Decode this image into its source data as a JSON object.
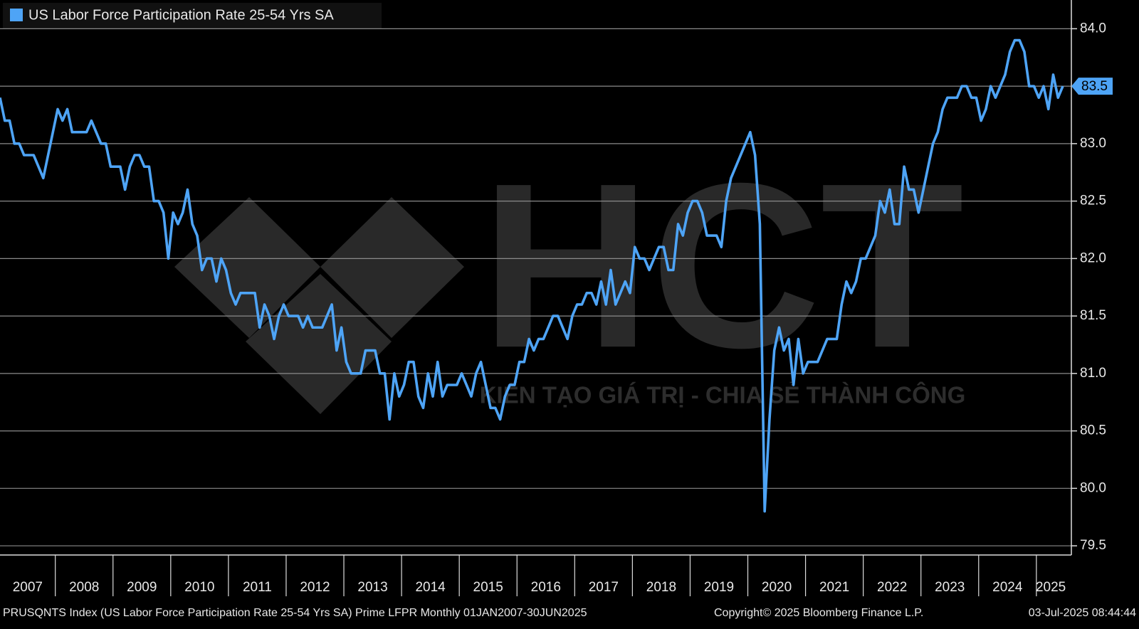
{
  "chart_data": {
    "type": "line",
    "title": "US Labor Force Participation Rate 25-54 Yrs SA",
    "footer": "PRUSQNTS Index (US Labor Force Participation Rate 25-54 Yrs SA) Prime LFPR  Monthly 01JAN2007-30JUN2025",
    "copyright": "Copyright© 2025 Bloomberg Finance L.P.",
    "timestamp": "03-Jul-2025 08:44:44",
    "watermark": "HCT",
    "watermark_slogan": "KIẾN TẠO GIÁ TRỊ - CHIA SẺ THÀNH CÔNG",
    "categories": [
      "2007",
      null,
      null,
      null,
      null,
      null,
      null,
      null,
      null,
      null,
      null,
      null,
      "2008",
      null,
      null,
      null,
      null,
      null,
      null,
      null,
      null,
      null,
      null,
      null,
      "2009",
      null,
      null,
      null,
      null,
      null,
      null,
      null,
      null,
      null,
      null,
      null,
      "2010",
      null,
      null,
      null,
      null,
      null,
      null,
      null,
      null,
      null,
      null,
      null,
      "2011",
      null,
      null,
      null,
      null,
      null,
      null,
      null,
      null,
      null,
      null,
      null,
      "2012",
      null,
      null,
      null,
      null,
      null,
      null,
      null,
      null,
      null,
      null,
      null,
      "2013",
      null,
      null,
      null,
      null,
      null,
      null,
      null,
      null,
      null,
      null,
      null,
      "2014",
      null,
      null,
      null,
      null,
      null,
      null,
      null,
      null,
      null,
      null,
      null,
      "2015",
      null,
      null,
      null,
      null,
      null,
      null,
      null,
      null,
      null,
      null,
      null,
      "2016",
      null,
      null,
      null,
      null,
      null,
      null,
      null,
      null,
      null,
      null,
      null,
      "2017",
      null,
      null,
      null,
      null,
      null,
      null,
      null,
      null,
      null,
      null,
      null,
      "2018",
      null,
      null,
      null,
      null,
      null,
      null,
      null,
      null,
      null,
      null,
      null,
      "2019",
      null,
      null,
      null,
      null,
      null,
      null,
      null,
      null,
      null,
      null,
      null,
      "2020",
      null,
      null,
      null,
      null,
      null,
      null,
      null,
      null,
      null,
      null,
      null,
      "2021",
      null,
      null,
      null,
      null,
      null,
      null,
      null,
      null,
      null,
      null,
      null,
      "2022",
      null,
      null,
      null,
      null,
      null,
      null,
      null,
      null,
      null,
      null,
      null,
      "2023",
      null,
      null,
      null,
      null,
      null,
      null,
      null,
      null,
      null,
      null,
      null,
      "2024",
      null,
      null,
      null,
      null,
      null,
      null,
      null,
      null,
      null,
      null,
      null,
      "2025",
      null,
      null,
      null,
      null,
      null
    ],
    "series": [
      {
        "name": "US Labor Force Participation Rate 25-54 Yrs SA",
        "color": "#4ea4f6",
        "values": [
          83.4,
          83.2,
          83.2,
          83.0,
          83.0,
          82.9,
          82.9,
          82.9,
          82.8,
          82.7,
          82.9,
          83.1,
          83.3,
          83.2,
          83.3,
          83.1,
          83.1,
          83.1,
          83.1,
          83.2,
          83.1,
          83.0,
          83.0,
          82.8,
          82.8,
          82.8,
          82.6,
          82.8,
          82.9,
          82.9,
          82.8,
          82.8,
          82.5,
          82.5,
          82.4,
          82.0,
          82.4,
          82.3,
          82.4,
          82.6,
          82.3,
          82.2,
          81.9,
          82.0,
          82.0,
          81.8,
          82.0,
          81.9,
          81.7,
          81.6,
          81.7,
          81.7,
          81.7,
          81.7,
          81.4,
          81.6,
          81.5,
          81.3,
          81.5,
          81.6,
          81.5,
          81.5,
          81.5,
          81.4,
          81.5,
          81.4,
          81.4,
          81.4,
          81.5,
          81.6,
          81.2,
          81.4,
          81.1,
          81.0,
          81.0,
          81.0,
          81.2,
          81.2,
          81.2,
          81.0,
          81.0,
          80.6,
          81.0,
          80.8,
          80.9,
          81.1,
          81.1,
          80.8,
          80.7,
          81.0,
          80.8,
          81.1,
          80.8,
          80.9,
          80.9,
          80.9,
          81.0,
          80.9,
          80.8,
          81.0,
          81.1,
          80.9,
          80.7,
          80.7,
          80.6,
          80.8,
          80.9,
          80.9,
          81.1,
          81.1,
          81.3,
          81.2,
          81.3,
          81.3,
          81.4,
          81.5,
          81.5,
          81.4,
          81.3,
          81.5,
          81.6,
          81.6,
          81.7,
          81.7,
          81.6,
          81.8,
          81.6,
          81.9,
          81.6,
          81.7,
          81.8,
          81.7,
          82.1,
          82.0,
          82.0,
          81.9,
          82.0,
          82.1,
          82.1,
          81.9,
          81.9,
          82.3,
          82.2,
          82.4,
          82.5,
          82.5,
          82.4,
          82.2,
          82.2,
          82.2,
          82.1,
          82.5,
          82.7,
          82.8,
          82.9,
          83.0,
          83.1,
          82.9,
          82.3,
          79.8,
          80.6,
          81.2,
          81.4,
          81.2,
          81.3,
          80.9,
          81.3,
          81.0,
          81.1,
          81.1,
          81.1,
          81.2,
          81.3,
          81.3,
          81.3,
          81.6,
          81.8,
          81.7,
          81.8,
          82.0,
          82.0,
          82.1,
          82.2,
          82.5,
          82.4,
          82.6,
          82.3,
          82.3,
          82.8,
          82.6,
          82.6,
          82.4,
          82.6,
          82.8,
          83.0,
          83.1,
          83.3,
          83.4,
          83.4,
          83.4,
          83.5,
          83.5,
          83.4,
          83.4,
          83.2,
          83.3,
          83.5,
          83.4,
          83.5,
          83.6,
          83.8,
          83.9,
          83.9,
          83.8,
          83.5,
          83.5,
          83.4,
          83.5,
          83.3,
          83.6,
          83.4,
          83.5
        ]
      }
    ],
    "ylim": [
      79.42,
      84.25
    ],
    "yticks": [
      {
        "value": 79.5,
        "label": "79.5"
      },
      {
        "value": 80,
        "label": "80.0"
      },
      80.5,
      {
        "value": 81,
        "label": "81.0"
      },
      81.5,
      {
        "value": 82,
        "label": "82.0"
      },
      82.5,
      {
        "value": 83,
        "label": "83.0"
      },
      83.5,
      {
        "value": 84,
        "label": "84.0"
      }
    ],
    "grid": true,
    "legend": "top-left"
  }
}
